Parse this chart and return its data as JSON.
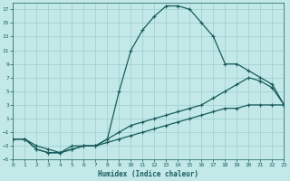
{
  "xlabel": "Humidex (Indice chaleur)",
  "xlim": [
    0,
    23
  ],
  "ylim": [
    -5,
    18
  ],
  "yticks": [
    -5,
    -3,
    -1,
    1,
    3,
    5,
    7,
    9,
    11,
    13,
    15,
    17
  ],
  "xticks": [
    0,
    1,
    2,
    3,
    4,
    5,
    6,
    7,
    8,
    9,
    10,
    11,
    12,
    13,
    14,
    15,
    16,
    17,
    18,
    19,
    20,
    21,
    22,
    23
  ],
  "bg_color": "#c2e8e8",
  "grid_color": "#9ecece",
  "line_color": "#1a5c5c",
  "line1_x": [
    0,
    1,
    2,
    3,
    4,
    5,
    6,
    7,
    8,
    9,
    10,
    11,
    12,
    13,
    14,
    15,
    16,
    17,
    18,
    19,
    20,
    21,
    22,
    23
  ],
  "line1_y": [
    -2,
    -2,
    -3,
    -3.5,
    -4,
    -3,
    -3,
    -3,
    -2,
    5,
    11,
    14,
    16,
    17.5,
    17.5,
    17,
    15,
    13,
    9,
    9,
    8,
    7,
    6,
    3
  ],
  "line2_x": [
    0,
    1,
    2,
    3,
    4,
    5,
    6,
    7,
    8,
    9,
    10,
    11,
    12,
    13,
    14,
    15,
    16,
    17,
    18,
    19,
    20,
    21,
    22,
    23
  ],
  "line2_y": [
    -2,
    -2,
    -3.5,
    -4,
    -4,
    -3.5,
    -3,
    -3,
    -2,
    -1,
    0,
    0.5,
    1,
    1.5,
    2,
    2.5,
    3,
    4,
    5,
    6,
    7,
    6.5,
    5.5,
    3
  ],
  "line3_x": [
    0,
    1,
    2,
    3,
    4,
    5,
    6,
    7,
    8,
    9,
    10,
    11,
    12,
    13,
    14,
    15,
    16,
    17,
    18,
    19,
    20,
    21,
    22,
    23
  ],
  "line3_y": [
    -2,
    -2,
    -3.5,
    -4,
    -4,
    -3.5,
    -3,
    -3,
    -2.5,
    -2,
    -1.5,
    -1,
    -0.5,
    0,
    0.5,
    1,
    1.5,
    2,
    2.5,
    2.5,
    3,
    3,
    3,
    3
  ]
}
